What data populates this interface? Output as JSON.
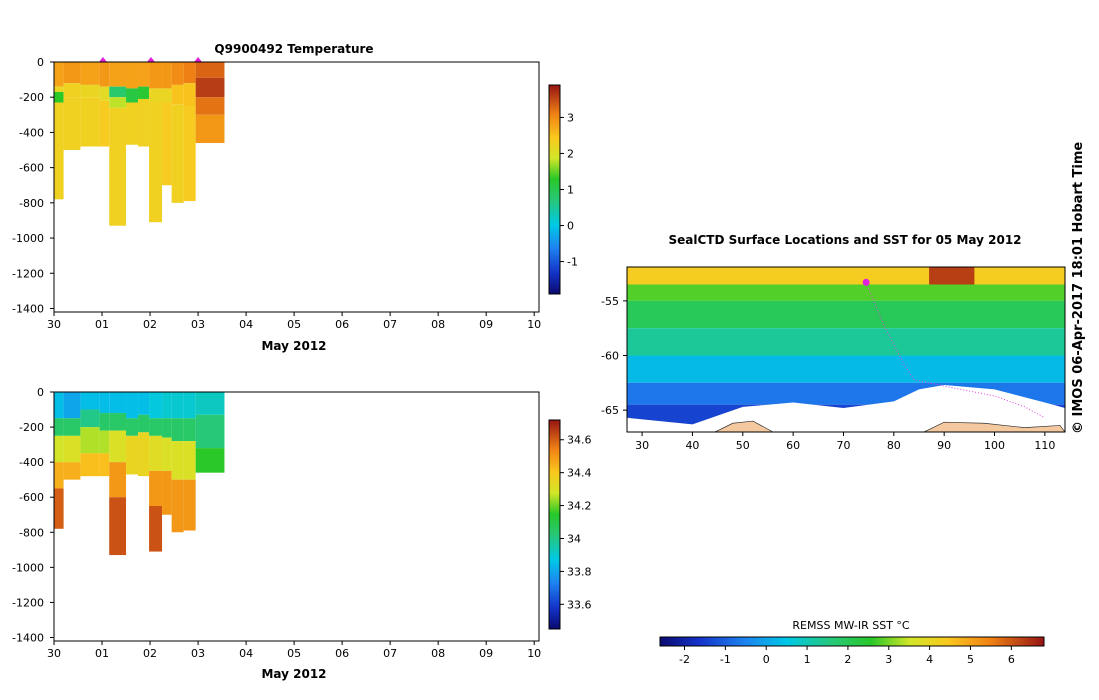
{
  "copyright": "© IMOS 06-Apr-2017 18:01 Hobart Time",
  "panels": {
    "temperature": {
      "title": "Q9900492  Temperature",
      "x_label": "May 2012"
    },
    "salinity": {
      "title": "",
      "x_label": "May 2012"
    },
    "map": {
      "title": "SealCTD Surface Locations and SST for 05 May 2012",
      "colorbar_label": "REMSS MW-IR SST °C"
    }
  },
  "chart_data": [
    {
      "type": "heatmap",
      "name": "temperature-section",
      "title": "Q9900492  Temperature",
      "xlabel": "May 2012",
      "ylabel": "",
      "x_ticks": [
        "30",
        "01",
        "02",
        "03",
        "04",
        "05",
        "06",
        "07",
        "08",
        "09",
        "10"
      ],
      "y_ticks": [
        0,
        -200,
        -400,
        -600,
        -800,
        -1000,
        -1200,
        -1400
      ],
      "xlim": [
        0,
        10.1
      ],
      "ylim": [
        -1420,
        0
      ],
      "colorbar": {
        "ticks": [
          -1,
          0,
          1,
          2,
          3
        ],
        "range": [
          -1.9,
          3.9
        ]
      },
      "profiles": [
        {
          "x0": 0.0,
          "x1": 0.2,
          "maxdepth": -780,
          "layers": [
            [
              0,
              -140,
              2.8
            ],
            [
              -140,
              -170,
              2.2
            ],
            [
              -170,
              -230,
              1.3
            ],
            [
              -230,
              -780,
              2.3
            ]
          ]
        },
        {
          "x0": 0.2,
          "x1": 0.55,
          "maxdepth": -500,
          "layers": [
            [
              0,
              -120,
              2.9
            ],
            [
              -120,
              -200,
              2.3
            ],
            [
              -200,
              -500,
              2.3
            ]
          ]
        },
        {
          "x0": 0.55,
          "x1": 0.95,
          "maxdepth": -480,
          "layers": [
            [
              0,
              -130,
              2.8
            ],
            [
              -130,
              -200,
              2.2
            ],
            [
              -200,
              -480,
              2.3
            ]
          ]
        },
        {
          "x0": 0.95,
          "x1": 1.15,
          "maxdepth": -480,
          "layers": [
            [
              0,
              -140,
              2.9
            ],
            [
              -140,
              -220,
              2.1
            ],
            [
              -220,
              -480,
              2.4
            ]
          ]
        },
        {
          "x0": 1.15,
          "x1": 1.5,
          "maxdepth": -930,
          "layers": [
            [
              0,
              -140,
              2.8
            ],
            [
              -140,
              -200,
              0.8
            ],
            [
              -200,
              -260,
              1.8
            ],
            [
              -260,
              -930,
              2.3
            ]
          ]
        },
        {
          "x0": 1.5,
          "x1": 1.75,
          "maxdepth": -470,
          "layers": [
            [
              0,
              -150,
              2.8
            ],
            [
              -150,
              -230,
              1.1
            ],
            [
              -230,
              -470,
              2.3
            ]
          ]
        },
        {
          "x0": 1.75,
          "x1": 1.98,
          "maxdepth": -480,
          "layers": [
            [
              0,
              -140,
              2.8
            ],
            [
              -140,
              -210,
              1.2
            ],
            [
              -210,
              -480,
              2.3
            ]
          ]
        },
        {
          "x0": 1.98,
          "x1": 2.25,
          "maxdepth": -910,
          "layers": [
            [
              0,
              -150,
              2.9
            ],
            [
              -150,
              -230,
              2.2
            ],
            [
              -230,
              -910,
              2.3
            ]
          ]
        },
        {
          "x0": 2.25,
          "x1": 2.45,
          "maxdepth": -700,
          "layers": [
            [
              0,
              -150,
              2.9
            ],
            [
              -150,
              -230,
              2.2
            ],
            [
              -230,
              -700,
              2.4
            ]
          ]
        },
        {
          "x0": 2.45,
          "x1": 2.7,
          "maxdepth": -800,
          "layers": [
            [
              0,
              -130,
              3.0
            ],
            [
              -130,
              -240,
              2.5
            ],
            [
              -240,
              -800,
              2.3
            ]
          ]
        },
        {
          "x0": 2.7,
          "x1": 2.95,
          "maxdepth": -790,
          "layers": [
            [
              0,
              -120,
              3.1
            ],
            [
              -120,
              -250,
              2.5
            ],
            [
              -250,
              -790,
              2.4
            ]
          ]
        },
        {
          "x0": 2.95,
          "x1": 3.55,
          "maxdepth": -460,
          "layers": [
            [
              0,
              -90,
              3.3
            ],
            [
              -90,
              -200,
              3.6
            ],
            [
              -200,
              -300,
              3.2
            ],
            [
              -300,
              -460,
              2.9
            ]
          ]
        }
      ],
      "float_positions": [
        1.02,
        2.02,
        3.0
      ]
    },
    {
      "type": "heatmap",
      "name": "salinity-section",
      "title": "",
      "xlabel": "May 2012",
      "ylabel": "",
      "x_ticks": [
        "30",
        "01",
        "02",
        "03",
        "04",
        "05",
        "06",
        "07",
        "08",
        "09",
        "10"
      ],
      "y_ticks": [
        0,
        -200,
        -400,
        -600,
        -800,
        -1000,
        -1200,
        -1400
      ],
      "xlim": [
        0,
        10.1
      ],
      "ylim": [
        -1420,
        0
      ],
      "colorbar": {
        "ticks": [
          33.6,
          33.8,
          34,
          34.2,
          34.4,
          34.6
        ],
        "range": [
          33.45,
          34.72
        ]
      },
      "profiles": [
        {
          "x0": 0.0,
          "x1": 0.2,
          "maxdepth": -780,
          "layers": [
            [
              0,
              -150,
              33.85
            ],
            [
              -150,
              -250,
              34.05
            ],
            [
              -250,
              -400,
              34.28
            ],
            [
              -400,
              -550,
              34.45
            ],
            [
              -550,
              -780,
              34.6
            ]
          ]
        },
        {
          "x0": 0.2,
          "x1": 0.55,
          "maxdepth": -500,
          "layers": [
            [
              0,
              -150,
              33.8
            ],
            [
              -150,
              -250,
              34.05
            ],
            [
              -250,
              -400,
              34.3
            ],
            [
              -400,
              -500,
              34.45
            ]
          ]
        },
        {
          "x0": 0.55,
          "x1": 0.95,
          "maxdepth": -480,
          "layers": [
            [
              0,
              -100,
              33.85
            ],
            [
              -100,
              -200,
              34.0
            ],
            [
              -200,
              -350,
              34.25
            ],
            [
              -350,
              -480,
              34.42
            ]
          ]
        },
        {
          "x0": 0.95,
          "x1": 1.15,
          "maxdepth": -480,
          "layers": [
            [
              0,
              -120,
              33.85
            ],
            [
              -120,
              -220,
              34.05
            ],
            [
              -220,
              -350,
              34.25
            ],
            [
              -350,
              -480,
              34.42
            ]
          ]
        },
        {
          "x0": 1.15,
          "x1": 1.5,
          "maxdepth": -930,
          "layers": [
            [
              0,
              -120,
              33.85
            ],
            [
              -120,
              -220,
              34.05
            ],
            [
              -220,
              -400,
              34.3
            ],
            [
              -400,
              -600,
              34.5
            ],
            [
              -600,
              -930,
              34.62
            ]
          ]
        },
        {
          "x0": 1.5,
          "x1": 1.75,
          "maxdepth": -470,
          "layers": [
            [
              0,
              -150,
              33.85
            ],
            [
              -150,
              -250,
              34.05
            ],
            [
              -250,
              -470,
              34.35
            ]
          ]
        },
        {
          "x0": 1.75,
          "x1": 1.98,
          "maxdepth": -480,
          "layers": [
            [
              0,
              -130,
              33.85
            ],
            [
              -130,
              -230,
              34.05
            ],
            [
              -230,
              -480,
              34.35
            ]
          ]
        },
        {
          "x0": 1.98,
          "x1": 2.25,
          "maxdepth": -910,
          "layers": [
            [
              0,
              -150,
              33.88
            ],
            [
              -150,
              -250,
              34.05
            ],
            [
              -250,
              -450,
              34.32
            ],
            [
              -450,
              -650,
              34.5
            ],
            [
              -650,
              -910,
              34.62
            ]
          ]
        },
        {
          "x0": 2.25,
          "x1": 2.45,
          "maxdepth": -700,
          "layers": [
            [
              0,
              -150,
              33.9
            ],
            [
              -150,
              -260,
              34.05
            ],
            [
              -260,
              -450,
              34.3
            ],
            [
              -450,
              -700,
              34.5
            ]
          ]
        },
        {
          "x0": 2.45,
          "x1": 2.7,
          "maxdepth": -800,
          "layers": [
            [
              0,
              -150,
              33.9
            ],
            [
              -150,
              -280,
              34.05
            ],
            [
              -280,
              -500,
              34.3
            ],
            [
              -500,
              -800,
              34.5
            ]
          ]
        },
        {
          "x0": 2.7,
          "x1": 2.95,
          "maxdepth": -790,
          "layers": [
            [
              0,
              -150,
              33.9
            ],
            [
              -150,
              -280,
              34.05
            ],
            [
              -280,
              -500,
              34.3
            ],
            [
              -500,
              -790,
              34.5
            ]
          ]
        },
        {
          "x0": 2.95,
          "x1": 3.55,
          "maxdepth": -460,
          "layers": [
            [
              0,
              -130,
              33.92
            ],
            [
              -130,
              -320,
              34.02
            ],
            [
              -320,
              -460,
              34.15
            ]
          ]
        }
      ]
    },
    {
      "type": "heatmap",
      "name": "sst-map",
      "title": "SealCTD Surface Locations and SST for 05 May 2012",
      "xlabel": "",
      "ylabel": "",
      "x_ticks": [
        30,
        40,
        50,
        60,
        70,
        80,
        90,
        100,
        110
      ],
      "y_ticks": [
        -55,
        -60,
        -65
      ],
      "xlim": [
        27,
        114
      ],
      "ylim": [
        -67,
        -51.9
      ],
      "colorbar": {
        "label": "REMSS MW-IR SST °C",
        "ticks": [
          -2,
          -1,
          0,
          1,
          2,
          3,
          4,
          5,
          6
        ],
        "range": [
          -2.6,
          6.8
        ]
      },
      "sst_rows": [
        {
          "lat_from": -51.9,
          "lat_to": -53.5,
          "sst": 4.3
        },
        {
          "lat_from": -53.5,
          "lat_to": -55,
          "sst": 2.8
        },
        {
          "lat_from": -55,
          "lat_to": -57.5,
          "sst": 2.0
        },
        {
          "lat_from": -57.5,
          "lat_to": -60,
          "sst": 1.3
        },
        {
          "lat_from": -60,
          "lat_to": -62.5,
          "sst": 0.3
        },
        {
          "lat_from": -62.5,
          "lat_to": -64.5,
          "sst": -0.7
        },
        {
          "lat_from": -64.5,
          "lat_to": -67,
          "sst": -1.4
        }
      ],
      "warm_patch": {
        "lon_from": 87,
        "lon_to": 96,
        "lat_from": -51.9,
        "lat_to": -53.5,
        "sst": 6.3
      },
      "ice_edge": [
        [
          27,
          -65.7
        ],
        [
          40,
          -66.3
        ],
        [
          50,
          -64.7
        ],
        [
          60,
          -64.3
        ],
        [
          70,
          -64.8
        ],
        [
          80,
          -64.2
        ],
        [
          85,
          -63.1
        ],
        [
          90,
          -62.7
        ],
        [
          100,
          -63.1
        ],
        [
          110,
          -64.3
        ],
        [
          114,
          -64.8
        ]
      ],
      "land": [
        [
          [
            44.5,
            -67
          ],
          [
            48,
            -66.2
          ],
          [
            52,
            -66
          ],
          [
            56,
            -67
          ]
        ],
        [
          [
            86,
            -67
          ],
          [
            90,
            -66.1
          ],
          [
            98,
            -66.2
          ],
          [
            106,
            -66.6
          ],
          [
            113,
            -66.4
          ],
          [
            114,
            -67
          ]
        ]
      ],
      "track": [
        [
          74.5,
          -53.3
        ],
        [
          76,
          -55
        ],
        [
          78,
          -57.2
        ],
        [
          80,
          -59
        ],
        [
          82,
          -60.8
        ],
        [
          84,
          -62.2
        ],
        [
          90,
          -62.8
        ],
        [
          100,
          -63.7
        ],
        [
          106,
          -64.7
        ],
        [
          110,
          -65.7
        ]
      ],
      "location": [
        74.5,
        -53.3
      ]
    }
  ]
}
